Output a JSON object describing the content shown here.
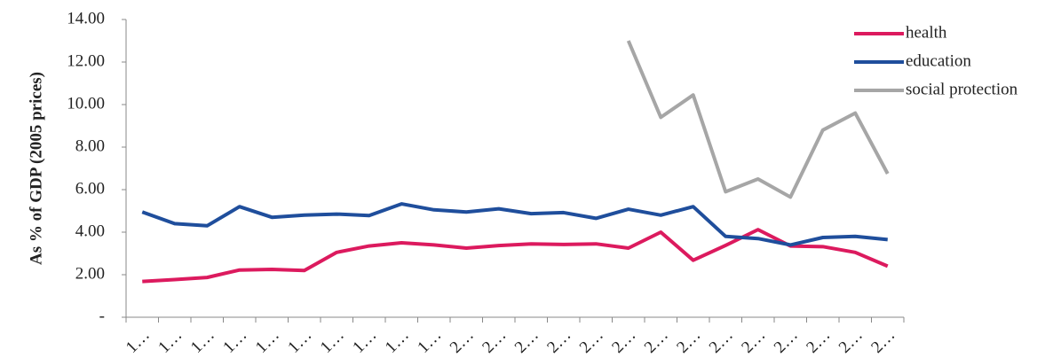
{
  "chart_data": {
    "type": "line",
    "y_axis_label": "As % of GDP (2005 prices)",
    "categories": [
      "1…",
      "1…",
      "1…",
      "1…",
      "1…",
      "1…",
      "1…",
      "1…",
      "1…",
      "1…",
      "2…",
      "2…",
      "2…",
      "2…",
      "2…",
      "2…",
      "2…",
      "2…",
      "2…",
      "2…",
      "2…",
      "2…",
      "2…",
      "2…"
    ],
    "series": [
      {
        "name": "health",
        "color": "#dc1a5e",
        "values": [
          1.68,
          1.77,
          1.87,
          2.22,
          2.25,
          2.2,
          3.05,
          3.35,
          3.5,
          3.4,
          3.25,
          3.37,
          3.45,
          3.42,
          3.45,
          3.25,
          4.0,
          2.68,
          3.38,
          4.12,
          3.35,
          3.32,
          3.05,
          2.4
        ]
      },
      {
        "name": "education",
        "color": "#1f4e9c",
        "values": [
          4.95,
          4.4,
          4.3,
          5.2,
          4.7,
          4.8,
          4.85,
          4.78,
          5.33,
          5.05,
          4.95,
          5.1,
          4.87,
          4.92,
          4.65,
          5.08,
          4.8,
          5.2,
          3.8,
          3.7,
          3.4,
          3.75,
          3.8,
          3.65
        ]
      },
      {
        "name": "social protection",
        "color": "#a6a6a6",
        "values": [
          null,
          null,
          null,
          null,
          null,
          null,
          null,
          null,
          null,
          null,
          null,
          null,
          null,
          null,
          null,
          13.0,
          9.4,
          10.45,
          5.9,
          6.5,
          5.65,
          8.8,
          9.6,
          6.75
        ]
      }
    ],
    "ylim": [
      0,
      14
    ],
    "yticks": [
      {
        "value": 0,
        "label": "-"
      },
      {
        "value": 2,
        "label": "2.00"
      },
      {
        "value": 4,
        "label": "4.00"
      },
      {
        "value": 6,
        "label": "6.00"
      },
      {
        "value": 8,
        "label": "8.00"
      },
      {
        "value": 10,
        "label": "10.00"
      },
      {
        "value": 12,
        "label": "12.00"
      },
      {
        "value": 14,
        "label": "14.00"
      }
    ],
    "grid": false,
    "legend": "top-right"
  }
}
